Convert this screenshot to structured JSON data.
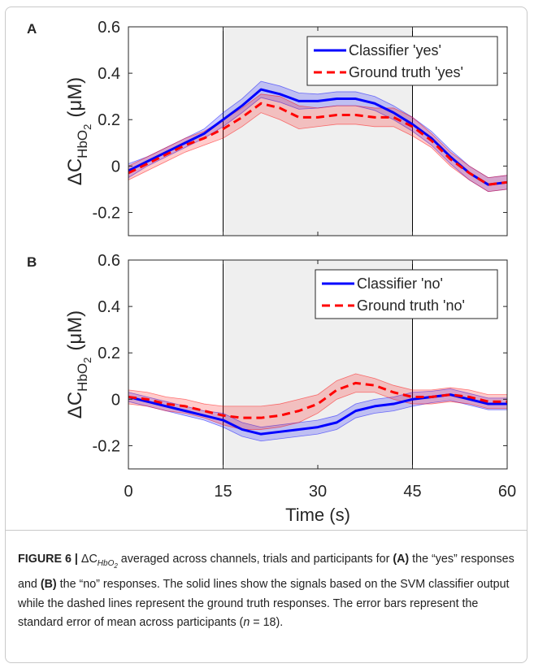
{
  "chart_data": [
    {
      "type": "line",
      "panel": "A",
      "ylabel": {
        "main": "ΔC",
        "sub": "HbO",
        "subsub": "2",
        "unit": "(μM)"
      },
      "x": [
        0,
        3,
        6,
        9,
        12,
        15,
        18,
        21,
        24,
        27,
        30,
        33,
        36,
        39,
        42,
        45,
        48,
        51,
        54,
        57,
        60
      ],
      "xlim": [
        0,
        60
      ],
      "xticks": [
        0,
        15,
        30,
        45,
        60
      ],
      "ylim": [
        -0.3,
        0.6
      ],
      "yticks": [
        -0.2,
        0,
        0.2,
        0.4,
        0.6
      ],
      "shade": [
        15,
        45
      ],
      "legend": "upper right",
      "series": [
        {
          "name": "Classifier 'yes'",
          "color": "#0000ff",
          "style": "solid",
          "values": [
            -0.02,
            0.02,
            0.06,
            0.1,
            0.14,
            0.2,
            0.26,
            0.33,
            0.31,
            0.28,
            0.28,
            0.29,
            0.29,
            0.27,
            0.23,
            0.18,
            0.12,
            0.04,
            -0.03,
            -0.08,
            -0.07
          ],
          "errors": [
            0.03,
            0.02,
            0.02,
            0.02,
            0.02,
            0.03,
            0.03,
            0.035,
            0.035,
            0.035,
            0.03,
            0.03,
            0.03,
            0.03,
            0.03,
            0.03,
            0.03,
            0.03,
            0.03,
            0.03,
            0.03
          ]
        },
        {
          "name": "Ground truth 'yes'",
          "color": "#ff0000",
          "style": "dashed",
          "values": [
            -0.03,
            0.01,
            0.05,
            0.09,
            0.12,
            0.16,
            0.21,
            0.27,
            0.25,
            0.21,
            0.21,
            0.22,
            0.22,
            0.21,
            0.21,
            0.17,
            0.11,
            0.03,
            -0.03,
            -0.08,
            -0.07
          ],
          "errors": [
            0.03,
            0.03,
            0.03,
            0.03,
            0.03,
            0.04,
            0.04,
            0.04,
            0.05,
            0.05,
            0.04,
            0.04,
            0.04,
            0.04,
            0.04,
            0.04,
            0.03,
            0.03,
            0.03,
            0.03,
            0.03
          ]
        }
      ]
    },
    {
      "type": "line",
      "panel": "B",
      "ylabel": {
        "main": "ΔC",
        "sub": "HbO",
        "subsub": "2",
        "unit": "(μM)"
      },
      "xlabel": "Time (s)",
      "x": [
        0,
        3,
        6,
        9,
        12,
        15,
        18,
        21,
        24,
        27,
        30,
        33,
        36,
        39,
        42,
        45,
        48,
        51,
        54,
        57,
        60
      ],
      "xlim": [
        0,
        60
      ],
      "xticks": [
        0,
        15,
        30,
        45,
        60
      ],
      "ylim": [
        -0.3,
        0.6
      ],
      "yticks": [
        -0.2,
        0,
        0.2,
        0.4,
        0.6
      ],
      "shade": [
        15,
        45
      ],
      "legend": "upper right",
      "series": [
        {
          "name": "Classifier 'no'",
          "color": "#0000ff",
          "style": "solid",
          "values": [
            0.01,
            -0.01,
            -0.03,
            -0.05,
            -0.07,
            -0.09,
            -0.13,
            -0.15,
            -0.14,
            -0.13,
            -0.12,
            -0.1,
            -0.05,
            -0.03,
            -0.02,
            0,
            0.01,
            0.02,
            0,
            -0.02,
            -0.02
          ],
          "errors": [
            0.02,
            0.02,
            0.02,
            0.02,
            0.02,
            0.03,
            0.03,
            0.03,
            0.03,
            0.03,
            0.03,
            0.03,
            0.03,
            0.03,
            0.03,
            0.03,
            0.025,
            0.025,
            0.025,
            0.025,
            0.025
          ]
        },
        {
          "name": "Ground truth 'no'",
          "color": "#ff0000",
          "style": "dashed",
          "values": [
            0.01,
            0,
            -0.02,
            -0.03,
            -0.05,
            -0.07,
            -0.08,
            -0.08,
            -0.07,
            -0.05,
            -0.02,
            0.04,
            0.07,
            0.06,
            0.03,
            0.01,
            0.01,
            0.02,
            0.01,
            -0.01,
            -0.01
          ],
          "errors": [
            0.03,
            0.03,
            0.03,
            0.03,
            0.03,
            0.04,
            0.05,
            0.05,
            0.05,
            0.05,
            0.04,
            0.04,
            0.04,
            0.03,
            0.03,
            0.03,
            0.03,
            0.03,
            0.03,
            0.03,
            0.03
          ]
        }
      ]
    }
  ],
  "caption": [
    "FIGURE 6 |",
    "ΔC",
    "HbO",
    "2",
    " averaged across channels, trials and participants for ",
    "(A)",
    " the “yes” responses and ",
    "(B)",
    " the “no” responses. The solid lines show the signals based on the SVM classifier output while the dashed lines represent the ground truth responses. The error bars represent the standard error of mean across participants (",
    "n",
    " = 18)."
  ]
}
